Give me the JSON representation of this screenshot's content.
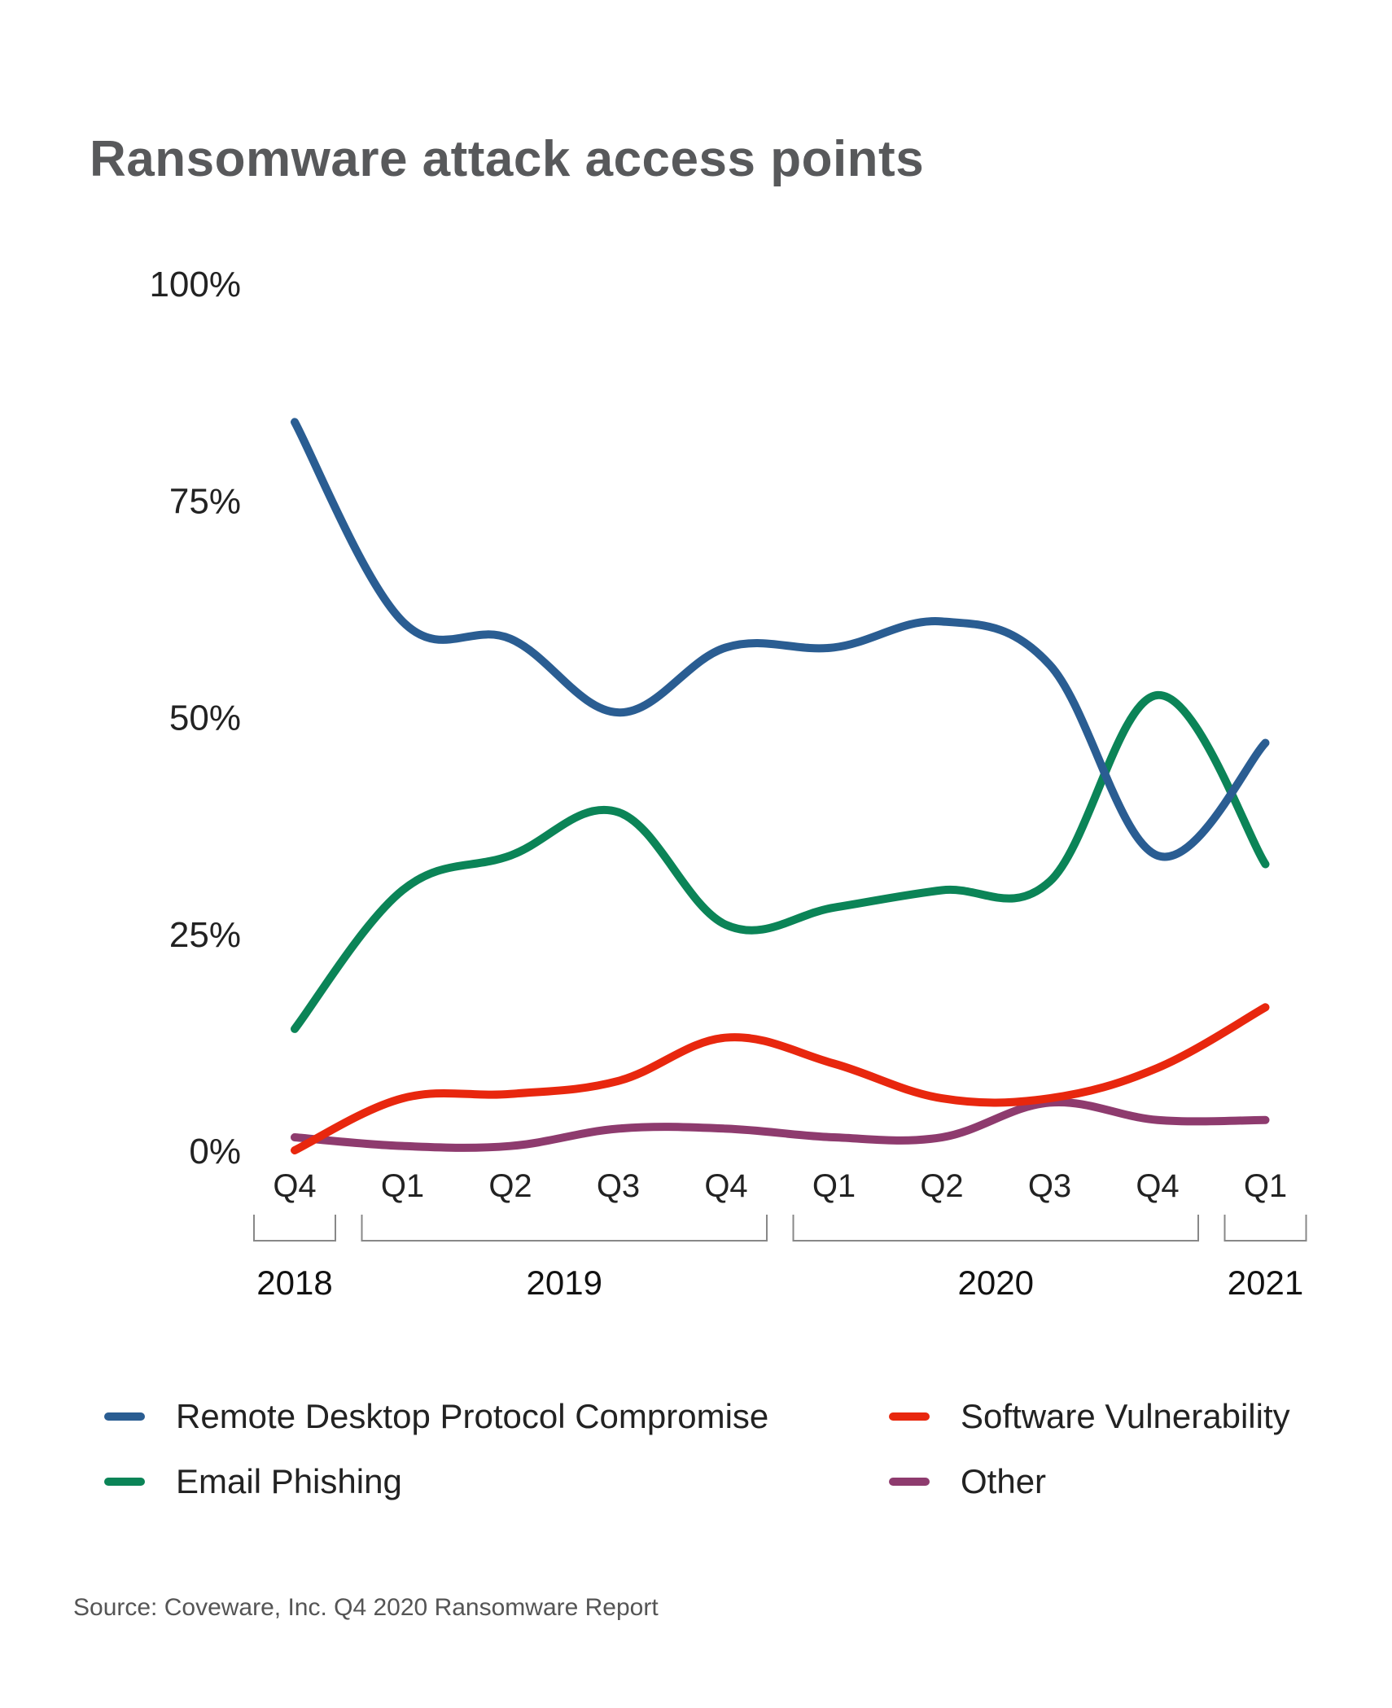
{
  "title": "Ransomware attack access points",
  "source": "Source: Coveware, Inc. Q4 2020 Ransomware Report",
  "chart_data": {
    "type": "line",
    "x": [
      "Q4",
      "Q1",
      "Q2",
      "Q3",
      "Q4",
      "Q1",
      "Q2",
      "Q3",
      "Q4",
      "Q1"
    ],
    "year_groups": [
      {
        "label": "2018",
        "quarters": [
          "Q4"
        ]
      },
      {
        "label": "2019",
        "quarters": [
          "Q1",
          "Q2",
          "Q3",
          "Q4"
        ]
      },
      {
        "label": "2020",
        "quarters": [
          "Q1",
          "Q2",
          "Q3",
          "Q4"
        ]
      },
      {
        "label": "2021",
        "quarters": [
          "Q1"
        ]
      }
    ],
    "y_ticks": [
      "100%",
      "75%",
      "50%",
      "25%",
      "0%"
    ],
    "ylim": [
      0,
      100
    ],
    "series": [
      {
        "name": "Remote Desktop Protocol Compromise",
        "color": "#2a5d92",
        "values": [
          84,
          61,
          59,
          50.5,
          58,
          58,
          61,
          56,
          34,
          47
        ]
      },
      {
        "name": "Email Phishing",
        "color": "#0b8457",
        "values": [
          14,
          30,
          34,
          39,
          26,
          28,
          30,
          31,
          52.5,
          33
        ]
      },
      {
        "name": "Software Vulnerability",
        "color": "#e8270e",
        "values": [
          0,
          6,
          6.5,
          8,
          13,
          10,
          6,
          6,
          9.5,
          16.5
        ]
      },
      {
        "name": "Other",
        "color": "#8e3b6e",
        "values": [
          1.5,
          0.5,
          0.5,
          2.5,
          2.5,
          1.5,
          1.5,
          5.5,
          3.5,
          3.5
        ]
      }
    ],
    "grid": false,
    "legend_position": "bottom"
  }
}
